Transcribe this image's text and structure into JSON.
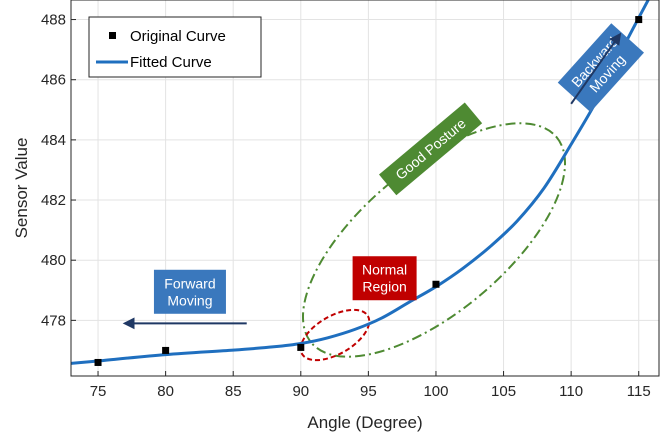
{
  "chart_data": {
    "type": "line",
    "xlabel": "Angle (Degree)",
    "ylabel": "Sensor Value",
    "xlim": [
      73,
      116.5
    ],
    "ylim": [
      476.15,
      488.65
    ],
    "xticks": [
      75,
      80,
      85,
      90,
      95,
      100,
      105,
      110,
      115
    ],
    "yticks": [
      478,
      480,
      482,
      484,
      486,
      488
    ],
    "grid": true,
    "legend": {
      "position": "top-left",
      "entries": [
        "Original Curve",
        "Fitted Curve"
      ]
    },
    "series": [
      {
        "name": "Original Curve",
        "kind": "scatter",
        "color": "#000000",
        "x": [
          75,
          80,
          90,
          100,
          115
        ],
        "y": [
          476.6,
          477.0,
          477.1,
          479.2,
          488.0
        ]
      },
      {
        "name": "Fitted Curve",
        "kind": "line",
        "color": "#1f6fbf",
        "x": [
          73,
          75,
          80,
          85,
          88,
          90,
          92,
          94,
          96,
          98,
          100,
          102,
          104,
          106,
          108,
          110,
          112,
          114,
          116
        ],
        "y": [
          476.57,
          476.65,
          476.86,
          477.01,
          477.12,
          477.23,
          477.42,
          477.7,
          478.08,
          478.6,
          479.12,
          479.73,
          480.45,
          481.3,
          482.4,
          483.85,
          485.4,
          487.2,
          488.9
        ]
      }
    ],
    "annotations": [
      {
        "text": [
          "Forward",
          "Moving"
        ],
        "box_color": "#3a78bd",
        "cx": 81.8,
        "cy": 478.95,
        "arrow": {
          "from": [
            86,
            477.9
          ],
          "to": [
            77,
            477.9
          ]
        }
      },
      {
        "text": [
          "Backward",
          "Moving"
        ],
        "box_color": "#3a78bd",
        "cx": 112.2,
        "cy": 486.4,
        "rotate": -48,
        "arrow": {
          "from": [
            110,
            485.2
          ],
          "to": [
            113.6,
            487.5
          ]
        }
      },
      {
        "text": [
          "Good Posture"
        ],
        "box_color": "#4e8a32",
        "cx": 99.6,
        "cy": 483.7,
        "rotate": -40
      },
      {
        "text": [
          "Normal",
          "Region"
        ],
        "box_color": "#c00000",
        "cx": 96.2,
        "cy": 479.4
      }
    ],
    "regions": [
      {
        "label": "Good Posture",
        "shape": "ellipse",
        "style": "dash-dot",
        "color": "#4e8a32"
      },
      {
        "label": "Normal Region",
        "shape": "ellipse",
        "style": "dashed",
        "color": "#c00000"
      }
    ]
  }
}
